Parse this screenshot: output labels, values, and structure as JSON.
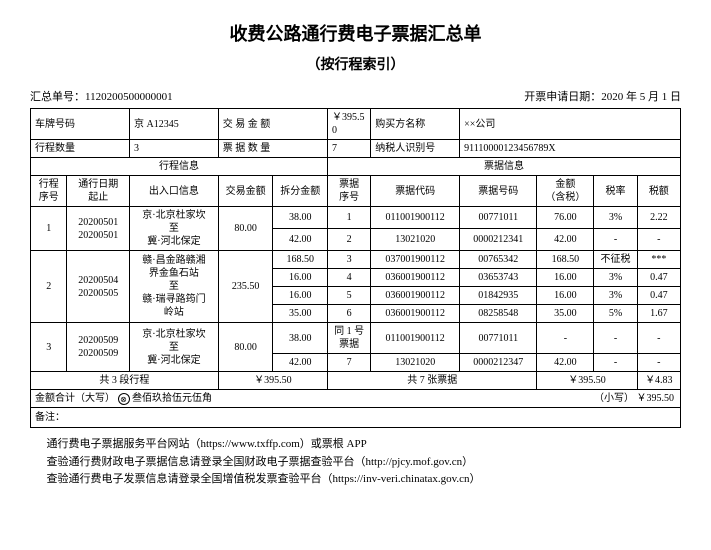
{
  "title": "收费公路通行费电子票据汇总单",
  "subtitle": "（按行程索引）",
  "summary_no_label": "汇总单号：",
  "summary_no": "1120200500000001",
  "issue_date_label": "开票申请日期：",
  "issue_date": "2020 年 5 月 1 日",
  "header": {
    "plate_label": "车牌号码",
    "plate": "京 A12345",
    "amount_label": "交 易 金 额",
    "amount": "￥395.50",
    "buyer_label": "购买方名称",
    "buyer": "××公司",
    "trip_count_label": "行程数量",
    "trip_count": "3",
    "ticket_count_label": "票 据 数 量",
    "ticket_count": "7",
    "tax_id_label": "纳税人识别号",
    "tax_id": "91110000123456789X"
  },
  "group_headers": {
    "trip_info": "行程信息",
    "ticket_info": "票据信息"
  },
  "cols": {
    "trip_seq": "行程\n序号",
    "date": "通行日期\n起止",
    "gate": "出入口信息",
    "trade_amt": "交易金额",
    "split_amt": "拆分金额",
    "tk_seq": "票据\n序号",
    "tk_code": "票据代码",
    "tk_no": "票据号码",
    "amt_tax": "金额\n（含税）",
    "rate": "税率",
    "tax": "税额"
  },
  "rows": [
    {
      "trip_seq": "1",
      "date": "20200501\n20200501",
      "gate": "京·北京杜家坎\n至\n冀·河北保定",
      "trade_amt": "80.00",
      "splits": [
        {
          "split_amt": "38.00",
          "tk_seq": "1",
          "tk_code": "011001900112",
          "tk_no": "00771011",
          "amt_tax": "76.00",
          "rate": "3%",
          "tax": "2.22"
        },
        {
          "split_amt": "42.00",
          "tk_seq": "2",
          "tk_code": "13021020",
          "tk_no": "0000212341",
          "amt_tax": "42.00",
          "rate": "-",
          "tax": "-"
        }
      ]
    },
    {
      "trip_seq": "2",
      "date": "20200504\n20200505",
      "gate": "赣·昌金路赣湘\n界金鱼石站\n至\n赣·瑞寻路筠门\n岭站",
      "trade_amt": "235.50",
      "splits": [
        {
          "split_amt": "168.50",
          "tk_seq": "3",
          "tk_code": "037001900112",
          "tk_no": "00765342",
          "amt_tax": "168.50",
          "rate": "不征税",
          "tax": "***"
        },
        {
          "split_amt": "16.00",
          "tk_seq": "4",
          "tk_code": "036001900112",
          "tk_no": "03653743",
          "amt_tax": "16.00",
          "rate": "3%",
          "tax": "0.47"
        },
        {
          "split_amt": "16.00",
          "tk_seq": "5",
          "tk_code": "036001900112",
          "tk_no": "01842935",
          "amt_tax": "16.00",
          "rate": "3%",
          "tax": "0.47"
        },
        {
          "split_amt": "35.00",
          "tk_seq": "6",
          "tk_code": "036001900112",
          "tk_no": "08258548",
          "amt_tax": "35.00",
          "rate": "5%",
          "tax": "1.67"
        }
      ]
    },
    {
      "trip_seq": "3",
      "date": "20200509\n20200509",
      "gate": "京·北京杜家坎\n至\n冀·河北保定",
      "trade_amt": "80.00",
      "splits": [
        {
          "split_amt": "38.00",
          "tk_seq": "同 1 号\n票据",
          "tk_code": "011001900112",
          "tk_no": "00771011",
          "amt_tax": "-",
          "rate": "-",
          "tax": "-"
        },
        {
          "split_amt": "42.00",
          "tk_seq": "7",
          "tk_code": "13021020",
          "tk_no": "0000212347",
          "amt_tax": "42.00",
          "rate": "-",
          "tax": "-"
        }
      ]
    }
  ],
  "totals": {
    "trips": "共 3 段行程",
    "trade_total": "￥395.50",
    "tickets": "共 7 张票据",
    "amt_total": "￥395.50",
    "tax_total": "￥4.83"
  },
  "sum_cn_label": "金额合计（大写）",
  "sum_cn": "叁佰玖拾伍元伍角",
  "sum_small_label": "（小写）",
  "sum_small": "￥395.50",
  "remark_label": "备注：",
  "notes": {
    "l1": "通行费电子票据服务平台网站（https://www.txffp.com）或票根 APP",
    "l2": "查验通行费财政电子票据信息请登录全国财政电子票据查验平台（http://pjcy.mof.gov.cn）",
    "l3": "查验通行费电子发票信息请登录全国增值税发票查验平台（https://inv-veri.chinatax.gov.cn）"
  }
}
